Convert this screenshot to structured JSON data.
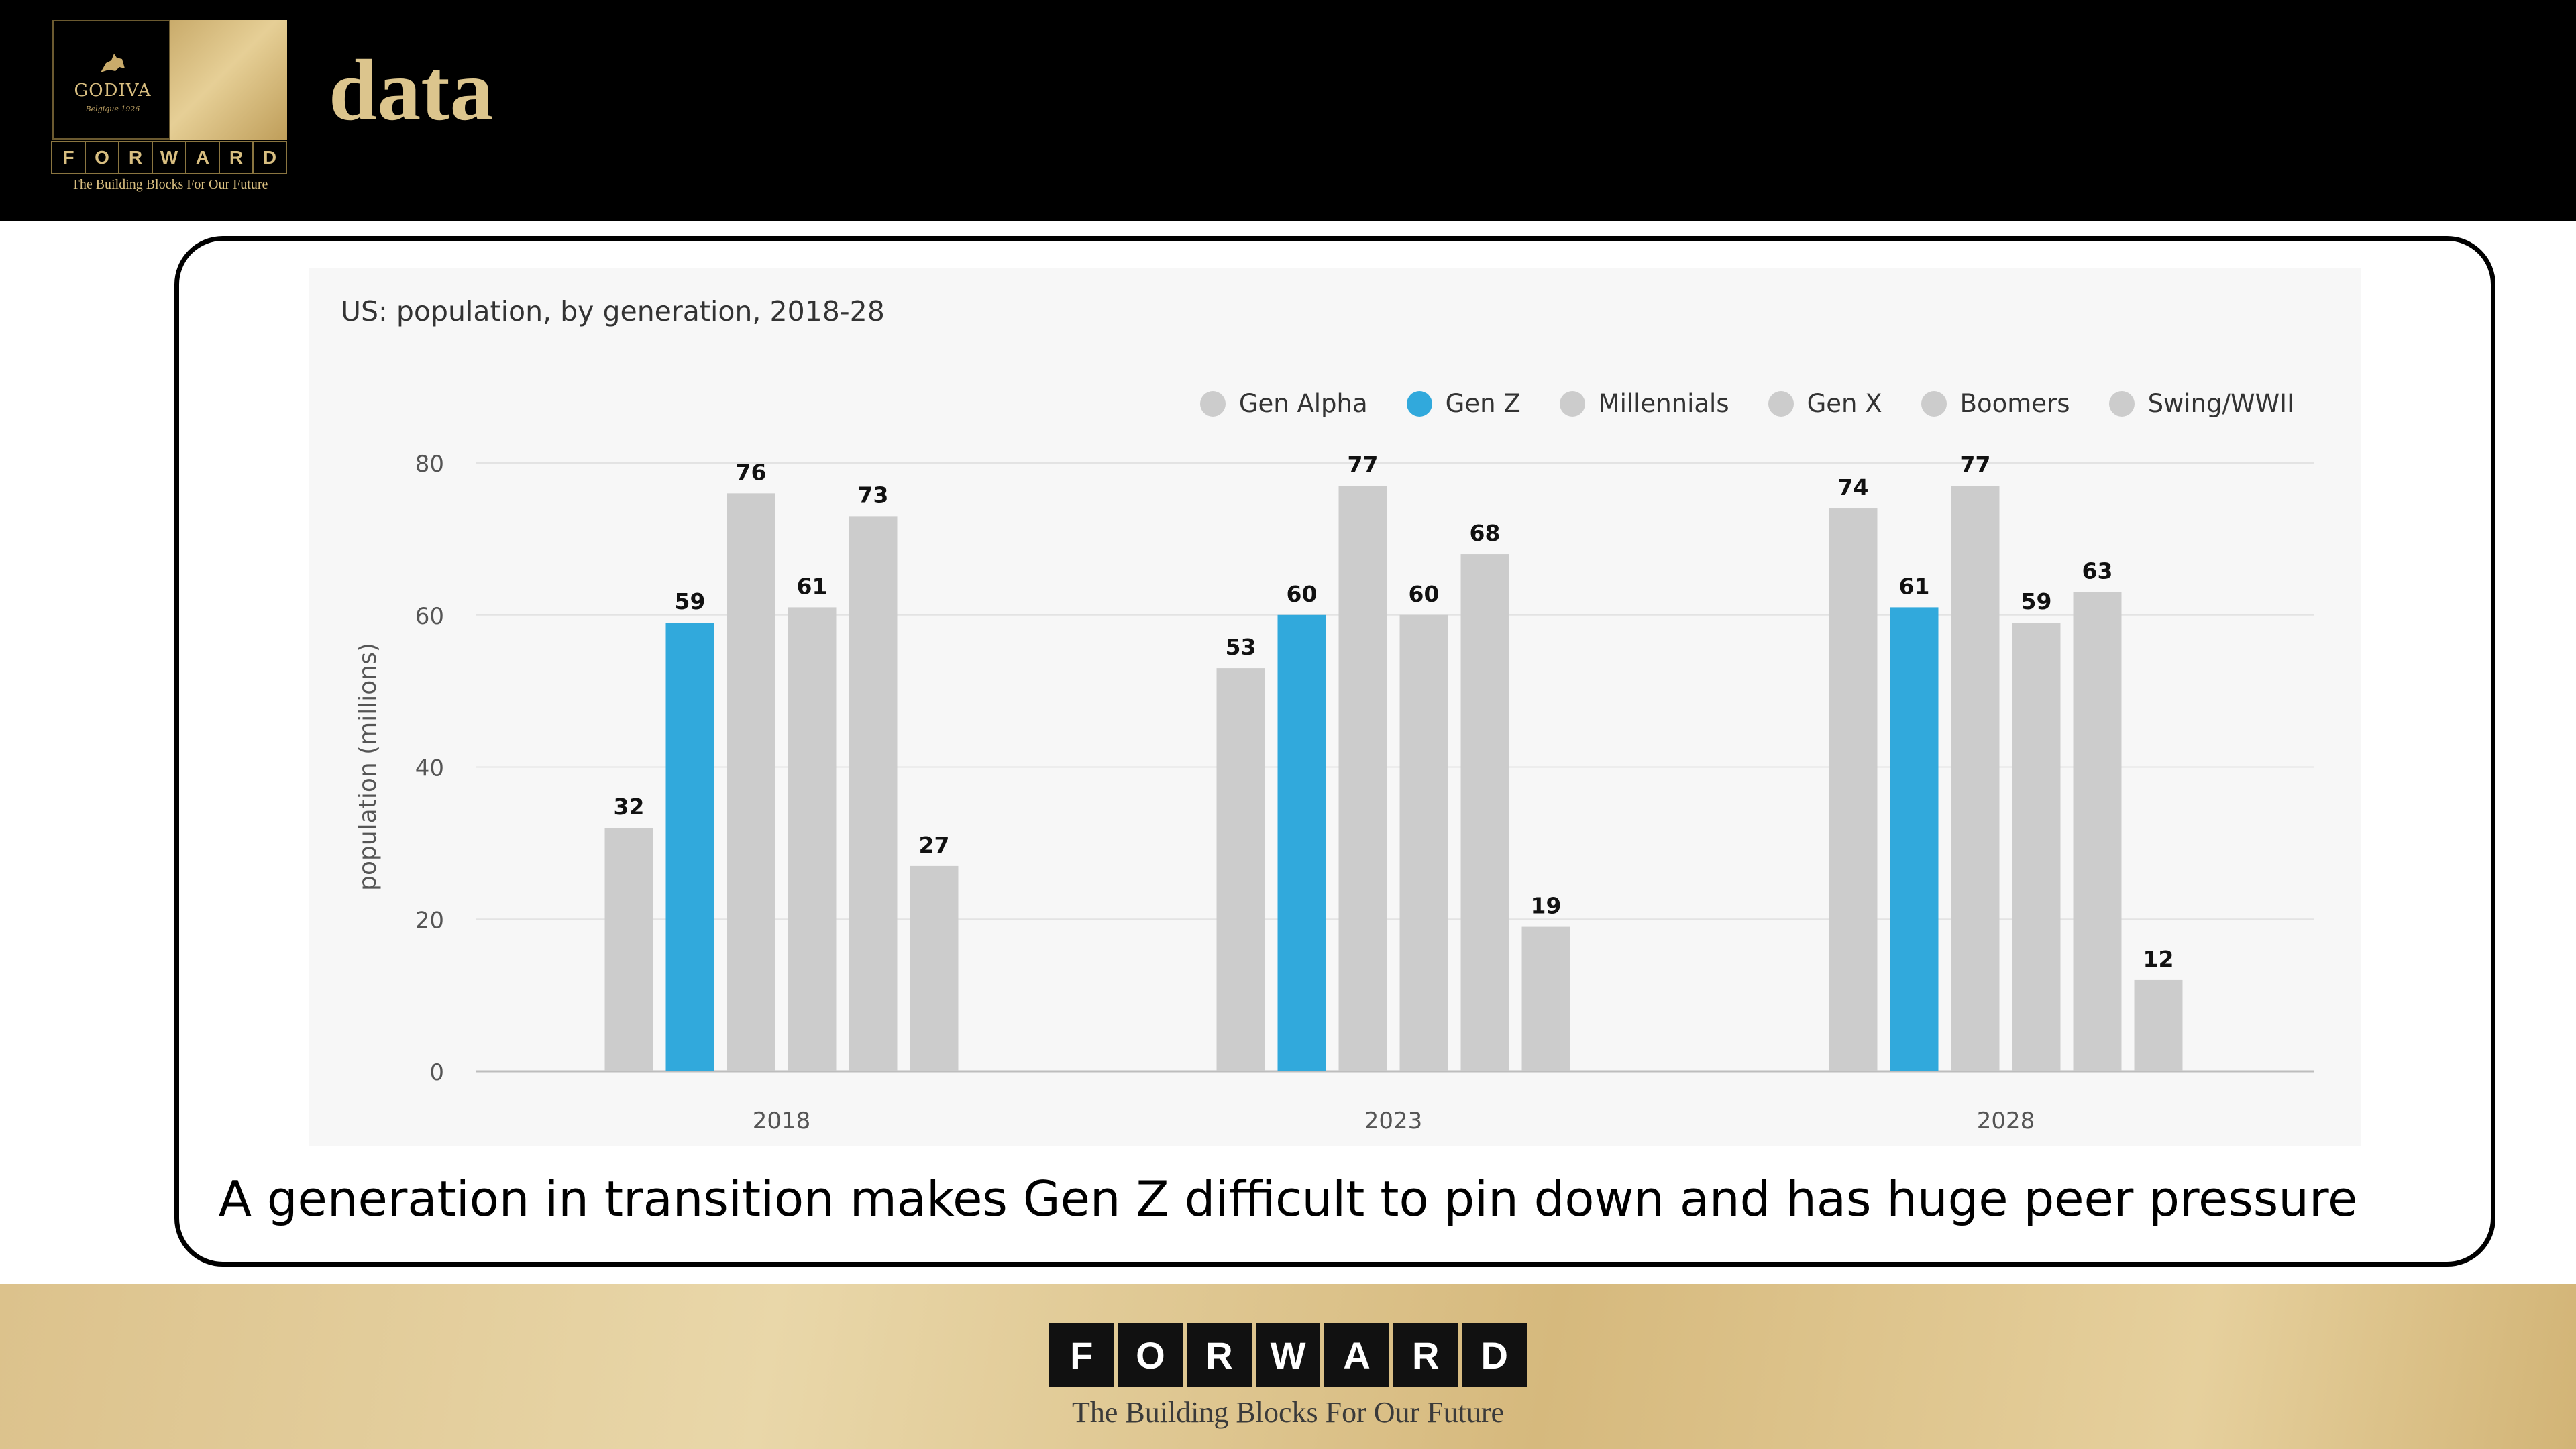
{
  "header": {
    "title": "data",
    "logo": {
      "brand": "GODIVA",
      "sub": "Belgique 1926",
      "letters": [
        "F",
        "O",
        "R",
        "W",
        "A",
        "R",
        "D"
      ],
      "tagline": "The Building Blocks For Our Future"
    }
  },
  "chart_data": {
    "type": "bar",
    "title": "US: population, by generation, 2018-28",
    "ylabel": "population (millions)",
    "xlabel": "",
    "ylim": [
      0,
      80
    ],
    "yticks": [
      0,
      20,
      40,
      60,
      80
    ],
    "categories": [
      "2018",
      "2023",
      "2028"
    ],
    "series": [
      {
        "name": "Gen Alpha",
        "color": "#cccccc",
        "values": [
          32,
          53,
          74
        ]
      },
      {
        "name": "Gen Z",
        "color": "#31a9dc",
        "values": [
          59,
          60,
          61
        ]
      },
      {
        "name": "Millennials",
        "color": "#cccccc",
        "values": [
          76,
          77,
          77
        ]
      },
      {
        "name": "Gen X",
        "color": "#cccccc",
        "values": [
          61,
          60,
          59
        ]
      },
      {
        "name": "Boomers",
        "color": "#cccccc",
        "values": [
          73,
          68,
          63
        ]
      },
      {
        "name": "Swing/WWII",
        "color": "#cccccc",
        "values": [
          27,
          19,
          12
        ]
      }
    ],
    "grid": true,
    "legend": "top-right"
  },
  "caption": "A generation in transition makes Gen Z difficult to pin down and has huge peer pressure",
  "footer": {
    "letters": [
      "F",
      "O",
      "R",
      "W",
      "A",
      "R",
      "D"
    ],
    "tagline": "The Building Blocks For Our Future"
  }
}
